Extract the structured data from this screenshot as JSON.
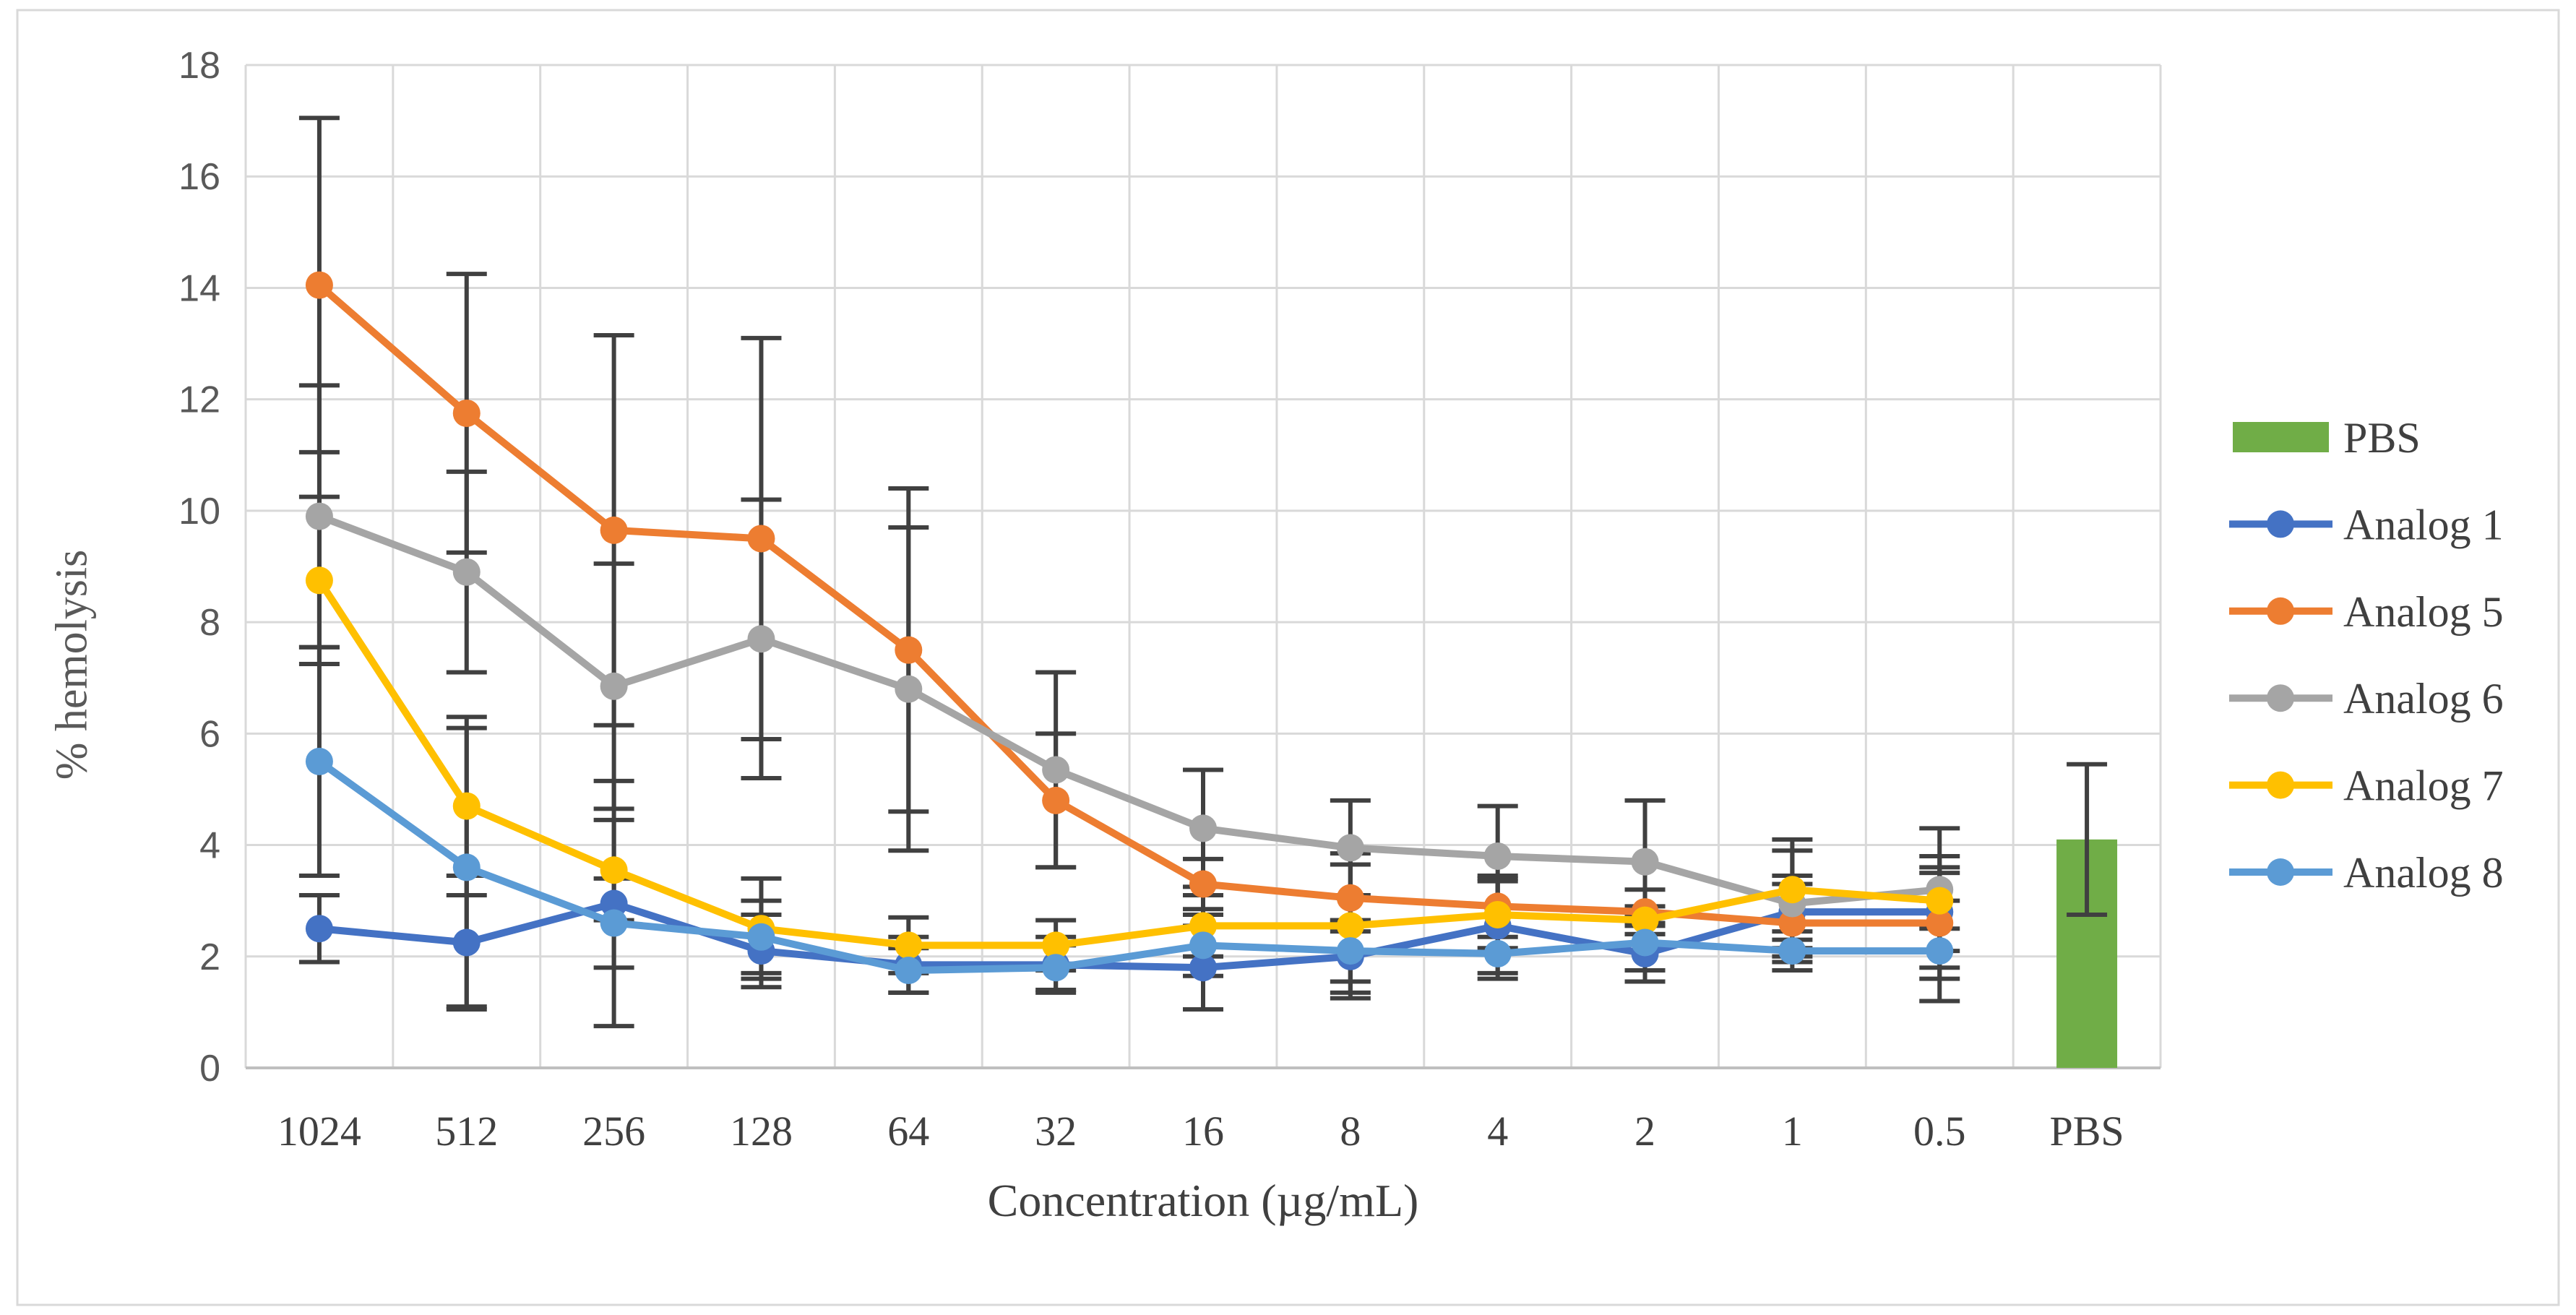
{
  "figure": {
    "background": "#ffffff",
    "border_color": "#d9d9d9"
  },
  "chart_data": {
    "type": "line",
    "title": "",
    "xlabel": "Concentration (µg/mL)",
    "ylabel": "% hemolysis",
    "ylim": [
      0,
      18
    ],
    "ytick_step": 2,
    "grid": true,
    "legend_position": "right",
    "categories": [
      "1024",
      "512",
      "256",
      "128",
      "64",
      "32",
      "16",
      "8",
      "4",
      "2",
      "1",
      "0.5",
      "PBS"
    ],
    "series": [
      {
        "name": "Analog 1",
        "color": "#4472C4",
        "values": [
          2.5,
          2.25,
          2.95,
          2.1,
          1.85,
          1.85,
          1.8,
          2.0,
          2.55,
          2.05,
          2.8,
          2.8
        ],
        "errors": [
          0.6,
          1.2,
          2.2,
          0.65,
          0.5,
          0.5,
          0.75,
          0.65,
          0.85,
          0.5,
          0.65,
          1.0
        ]
      },
      {
        "name": "Analog 5",
        "color": "#ED7D31",
        "values": [
          14.05,
          11.75,
          9.65,
          9.5,
          7.5,
          4.8,
          3.3,
          3.05,
          2.9,
          2.8,
          2.6,
          2.6
        ],
        "errors": [
          3.0,
          2.5,
          3.5,
          3.6,
          2.9,
          1.2,
          0.45,
          0.6,
          0.55,
          0.4,
          0.7,
          1.0
        ]
      },
      {
        "name": "Analog 6",
        "color": "#A5A5A5",
        "values": [
          9.9,
          8.9,
          6.85,
          7.7,
          6.8,
          5.35,
          4.3,
          3.95,
          3.8,
          3.7,
          2.95,
          3.2
        ],
        "errors": [
          2.35,
          1.8,
          2.2,
          2.5,
          2.9,
          1.75,
          1.05,
          0.85,
          0.9,
          1.1,
          0.95,
          1.1
        ]
      },
      {
        "name": "Analog 7",
        "color": "#FFC000",
        "values": [
          8.75,
          4.7,
          3.55,
          2.5,
          2.2,
          2.2,
          2.55,
          2.55,
          2.75,
          2.65,
          3.2,
          3.0
        ],
        "errors": [
          1.5,
          1.6,
          0.9,
          0.9,
          0.5,
          0.45,
          0.55,
          1.3,
          0.6,
          0.25,
          0.9,
          0.5
        ]
      },
      {
        "name": "Analog 8",
        "color": "#5B9BD5",
        "values": [
          5.5,
          3.6,
          2.6,
          2.35,
          1.75,
          1.8,
          2.2,
          2.1,
          2.05,
          2.25,
          2.1,
          2.1
        ],
        "errors": [
          2.05,
          2.5,
          0.8,
          0.65,
          0.4,
          0.4,
          0.55,
          0.55,
          0.45,
          0.5,
          0.35,
          0.9
        ]
      }
    ],
    "bar_series": {
      "name": "PBS",
      "color": "#70AD47",
      "category": "PBS",
      "value": 4.1,
      "error": 1.35
    },
    "error_bar_color": "#404040",
    "gridline_color": "#d9d9d9",
    "axis_line_color": "#bfbfbf",
    "ytick_label_color": "#595959",
    "xtick_label_color": "#404040",
    "text_color": "#404040",
    "yticks": [
      0,
      2,
      4,
      6,
      8,
      10,
      12,
      14,
      16,
      18
    ]
  },
  "legend": {
    "entries": [
      "PBS",
      "Analog 1",
      "Analog 5",
      "Analog 6",
      "Analog 7",
      "Analog 8"
    ]
  }
}
